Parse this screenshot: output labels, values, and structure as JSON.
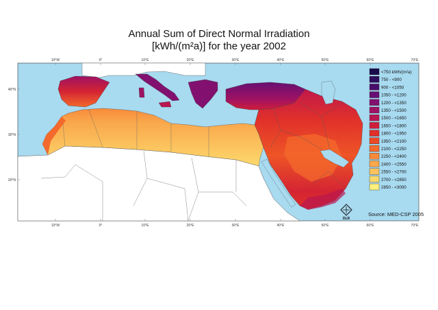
{
  "map": {
    "title_line1": "Annual Sum of Direct Normal Irradiation",
    "title_line2": "[kWh/(m²a)] for the year 2002",
    "source": "Source: MED-CSP 2005",
    "logo_text": "DLR",
    "top_ticks": [
      "10°W",
      "0°",
      "10°E",
      "20°E",
      "30°E",
      "40°E",
      "50°E",
      "60°E",
      "70°E"
    ],
    "bottom_ticks": [
      "10°W",
      "0°",
      "10°E",
      "20°E",
      "30°E",
      "40°E",
      "50°E",
      "60°E",
      "70°E"
    ],
    "left_ticks": [
      "40°N",
      "30°N",
      "20°N"
    ],
    "legend": [
      {
        "label": "<750 kWh/(m²a)",
        "color": "#1a0b4a"
      },
      {
        "label": "750 - <900",
        "color": "#2e0d5c"
      },
      {
        "label": "900 - <1050",
        "color": "#4a0e6a"
      },
      {
        "label": "1050 - <1200",
        "color": "#670f73"
      },
      {
        "label": "1200 - <1350",
        "color": "#82106f"
      },
      {
        "label": "1350 - <1500",
        "color": "#9e1263"
      },
      {
        "label": "1500 - <1650",
        "color": "#b81650"
      },
      {
        "label": "1650 - <1800",
        "color": "#cf1d3a"
      },
      {
        "label": "1800 - <1950",
        "color": "#e0302b"
      },
      {
        "label": "1950 - <2100",
        "color": "#ec4a26"
      },
      {
        "label": "2100 - <2250",
        "color": "#f46a2c"
      },
      {
        "label": "2250 - <2400",
        "color": "#f78a3a"
      },
      {
        "label": "2400 - <2550",
        "color": "#f9a84c"
      },
      {
        "label": "2550 - <2700",
        "color": "#fbc25d"
      },
      {
        "label": "2700 - <2850",
        "color": "#fdd96c"
      },
      {
        "label": "2850 - <3000",
        "color": "#fff07e"
      }
    ],
    "colors": {
      "sea": "#a8daf0",
      "land_outside": "#ffffff",
      "border": "#555555"
    }
  }
}
